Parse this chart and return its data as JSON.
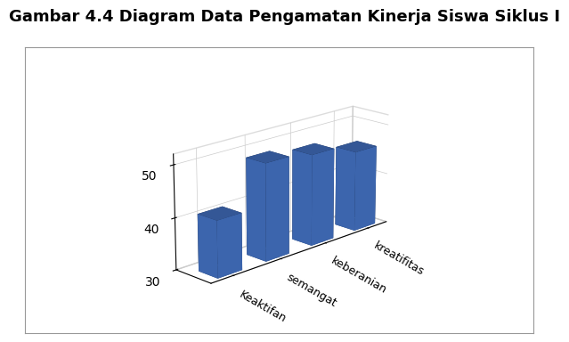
{
  "categories": [
    "Keaktifan",
    "semangat",
    "keberanian",
    "kreatifitas"
  ],
  "values": [
    41,
    49,
    48,
    46
  ],
  "bar_color": "#4472C4",
  "yticks_labels": [
    "30",
    "40",
    "50"
  ],
  "yticks_vals": [
    30,
    40,
    50
  ],
  "ymin": 30,
  "ymax": 52,
  "title": "ambar 4.4 Diagram Data Pengamatan Kinerja Siswa Siklus I",
  "title_fontsize": 13,
  "title_fontweight": "bold",
  "background_color": "#ffffff",
  "box_color": "#aaaaaa"
}
